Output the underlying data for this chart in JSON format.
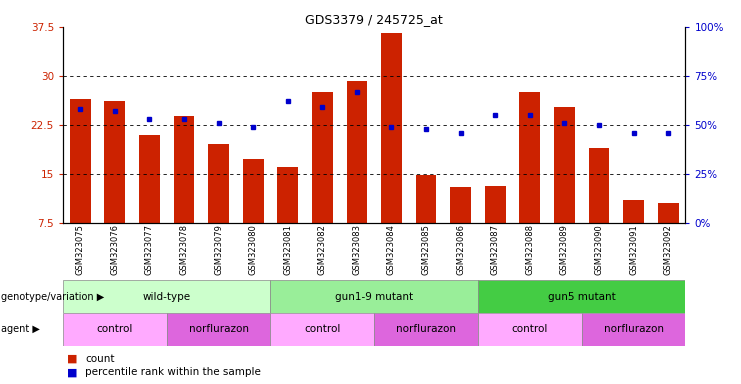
{
  "title": "GDS3379 / 245725_at",
  "samples": [
    "GSM323075",
    "GSM323076",
    "GSM323077",
    "GSM323078",
    "GSM323079",
    "GSM323080",
    "GSM323081",
    "GSM323082",
    "GSM323083",
    "GSM323084",
    "GSM323085",
    "GSM323086",
    "GSM323087",
    "GSM323088",
    "GSM323089",
    "GSM323090",
    "GSM323091",
    "GSM323092"
  ],
  "bar_values": [
    26.5,
    26.2,
    21.0,
    23.8,
    19.5,
    17.2,
    16.0,
    27.5,
    29.2,
    36.5,
    14.8,
    13.0,
    13.2,
    27.5,
    25.2,
    19.0,
    11.0,
    10.5
  ],
  "pct_values": [
    58,
    57,
    53,
    53,
    51,
    49,
    62,
    59,
    67,
    49,
    48,
    46,
    55,
    55,
    51,
    50,
    46,
    46
  ],
  "bar_color": "#cc2200",
  "dot_color": "#0000cc",
  "bar_bottom": 7.5,
  "ylim_left": [
    7.5,
    37.5
  ],
  "yticks_left": [
    7.5,
    15.0,
    22.5,
    30.0,
    37.5
  ],
  "ytick_labels_left": [
    "7.5",
    "15",
    "22.5",
    "30",
    "37.5"
  ],
  "ylim_right": [
    0,
    100
  ],
  "yticks_right": [
    0,
    25,
    50,
    75,
    100
  ],
  "ytick_labels_right": [
    "0%",
    "25%",
    "50%",
    "75%",
    "100%"
  ],
  "grid_lines": [
    15.0,
    22.5,
    30.0
  ],
  "group_data": [
    {
      "label": "wild-type",
      "start": 0,
      "end": 5,
      "color": "#ccffcc"
    },
    {
      "label": "gun1-9 mutant",
      "start": 6,
      "end": 11,
      "color": "#99ee99"
    },
    {
      "label": "gun5 mutant",
      "start": 12,
      "end": 17,
      "color": "#44cc44"
    }
  ],
  "agent_data": [
    {
      "label": "control",
      "start": 0,
      "end": 2,
      "color": "#ffaaff"
    },
    {
      "label": "norflurazon",
      "start": 3,
      "end": 5,
      "color": "#dd66dd"
    },
    {
      "label": "control",
      "start": 6,
      "end": 8,
      "color": "#ffaaff"
    },
    {
      "label": "norflurazon",
      "start": 9,
      "end": 11,
      "color": "#dd66dd"
    },
    {
      "label": "control",
      "start": 12,
      "end": 14,
      "color": "#ffaaff"
    },
    {
      "label": "norflurazon",
      "start": 15,
      "end": 17,
      "color": "#dd66dd"
    }
  ],
  "bg_color": "#ffffff",
  "tick_area_color": "#dddddd"
}
